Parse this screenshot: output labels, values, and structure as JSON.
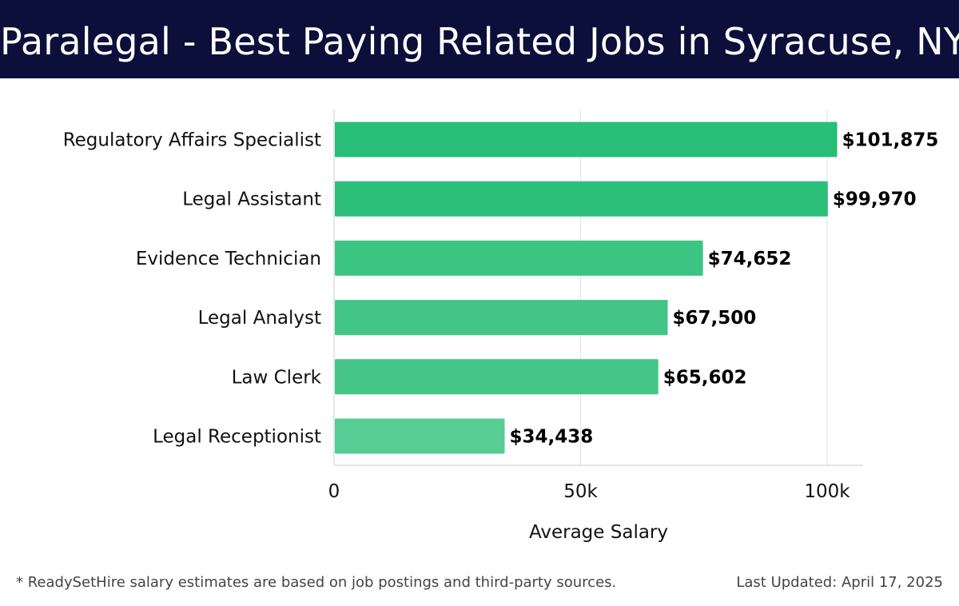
{
  "header": {
    "title": "Paralegal - Best Paying Related Jobs in Syracuse, NY"
  },
  "chart_data": {
    "type": "bar",
    "orientation": "horizontal",
    "categories": [
      "Regulatory Affairs Specialist",
      "Legal Assistant",
      "Evidence Technician",
      "Legal Analyst",
      "Law Clerk",
      "Legal Receptionist"
    ],
    "values": [
      101875,
      99970,
      74652,
      67500,
      65602,
      34438
    ],
    "data_labels": [
      "$101,875",
      "$99,970",
      "$74,652",
      "$67,500",
      "$65,602",
      "$34,438"
    ],
    "xlabel": "Average Salary",
    "ylabel": "",
    "xlim": [
      0,
      107000
    ],
    "x_ticks": [
      0,
      50000,
      100000
    ],
    "x_tick_labels": [
      "0",
      "50k",
      "100k"
    ],
    "grid": "vertical",
    "legend": "none",
    "bar_colors": [
      "#28be78",
      "#2bbf79",
      "#3cc483",
      "#42c587",
      "#46c689",
      "#58cc95"
    ]
  },
  "footer": {
    "note": "* ReadySetHire salary estimates are based on job postings and third-party sources.",
    "updated": "Last Updated: April 17, 2025"
  }
}
